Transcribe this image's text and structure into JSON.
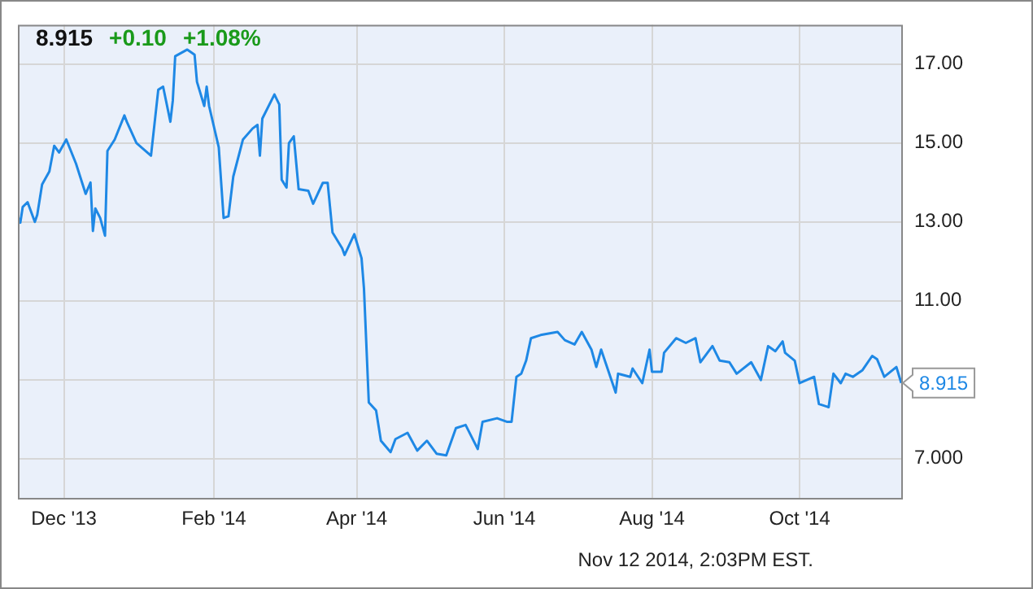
{
  "chart_data": {
    "type": "line",
    "x": [
      "2013-11-12",
      "2013-11-13",
      "2013-11-14",
      "2013-11-16",
      "2013-11-19",
      "2013-11-20",
      "2013-11-22",
      "2013-11-25",
      "2013-11-27",
      "2013-11-29",
      "2013-12-02",
      "2013-12-06",
      "2013-12-10",
      "2013-12-12",
      "2013-12-13",
      "2013-12-14",
      "2013-12-16",
      "2013-12-18",
      "2013-12-19",
      "2013-12-22",
      "2013-12-26",
      "2013-12-27",
      "2013-12-31",
      "2014-01-06",
      "2014-01-09",
      "2014-01-11",
      "2014-01-14",
      "2014-01-15",
      "2014-01-16",
      "2014-01-21",
      "2014-01-24",
      "2014-01-25",
      "2014-01-28",
      "2014-01-29",
      "2014-01-30",
      "2014-02-03",
      "2014-02-05",
      "2014-02-07",
      "2014-02-09",
      "2014-02-13",
      "2014-02-17",
      "2014-02-19",
      "2014-02-20",
      "2014-02-21",
      "2014-02-26",
      "2014-02-28",
      "2014-03-01",
      "2014-03-03",
      "2014-03-04",
      "2014-03-06",
      "2014-03-08",
      "2014-03-12",
      "2014-03-14",
      "2014-03-18",
      "2014-03-20",
      "2014-03-22",
      "2014-03-26",
      "2014-03-27",
      "2014-03-31",
      "2014-04-03",
      "2014-04-04",
      "2014-04-06",
      "2014-04-09",
      "2014-04-11",
      "2014-04-15",
      "2014-04-17",
      "2014-04-22",
      "2014-04-26",
      "2014-04-30",
      "2014-05-04",
      "2014-05-08",
      "2014-05-12",
      "2014-05-16",
      "2014-05-21",
      "2014-05-23",
      "2014-05-29",
      "2014-06-02",
      "2014-06-04",
      "2014-06-06",
      "2014-06-08",
      "2014-06-10",
      "2014-06-12",
      "2014-06-16",
      "2014-06-23",
      "2014-06-26",
      "2014-06-30",
      "2014-07-03",
      "2014-07-07",
      "2014-07-09",
      "2014-07-11",
      "2014-07-17",
      "2014-07-18",
      "2014-07-23",
      "2014-07-24",
      "2014-07-28",
      "2014-07-31",
      "2014-08-01",
      "2014-08-05",
      "2014-08-06",
      "2014-08-11",
      "2014-08-15",
      "2014-08-19",
      "2014-08-21",
      "2014-08-26",
      "2014-08-29",
      "2014-09-02",
      "2014-09-05",
      "2014-09-11",
      "2014-09-15",
      "2014-09-18",
      "2014-09-21",
      "2014-09-24",
      "2014-09-25",
      "2014-09-29",
      "2014-10-01",
      "2014-10-07",
      "2014-10-09",
      "2014-10-13",
      "2014-10-15",
      "2014-10-18",
      "2014-10-20",
      "2014-10-23",
      "2014-10-27",
      "2014-10-31",
      "2014-11-02",
      "2014-11-05",
      "2014-11-10",
      "2014-11-12"
    ],
    "series": [
      {
        "color": "#1e88e5",
        "values": [
          13.14,
          12.98,
          13.38,
          13.5,
          13.0,
          13.18,
          13.95,
          14.28,
          14.93,
          14.76,
          15.09,
          14.48,
          13.71,
          14.0,
          12.77,
          13.34,
          13.1,
          12.65,
          14.8,
          15.09,
          15.7,
          15.54,
          15.0,
          14.68,
          16.35,
          16.43,
          15.54,
          16.07,
          17.2,
          17.37,
          17.24,
          16.55,
          15.94,
          16.43,
          15.94,
          14.89,
          13.1,
          13.14,
          14.15,
          15.09,
          15.37,
          15.46,
          14.68,
          15.62,
          16.23,
          15.98,
          14.07,
          13.87,
          15.0,
          15.17,
          13.83,
          13.79,
          13.46,
          13.99,
          13.99,
          12.73,
          12.33,
          12.16,
          12.69,
          12.08,
          11.31,
          8.42,
          8.22,
          7.45,
          7.16,
          7.49,
          7.65,
          7.2,
          7.45,
          7.12,
          7.08,
          7.77,
          7.85,
          7.24,
          7.93,
          8.02,
          7.93,
          7.93,
          9.07,
          9.15,
          9.48,
          10.05,
          10.13,
          10.21,
          10.0,
          9.89,
          10.21,
          9.76,
          9.32,
          9.76,
          8.67,
          9.15,
          9.07,
          9.28,
          8.91,
          9.76,
          9.2,
          9.2,
          9.68,
          10.05,
          9.93,
          10.05,
          9.44,
          9.85,
          9.48,
          9.44,
          9.15,
          9.44,
          8.99,
          9.85,
          9.72,
          9.97,
          9.68,
          9.48,
          8.91,
          9.07,
          8.38,
          8.3,
          9.15,
          8.91,
          9.15,
          9.07,
          9.24,
          9.6,
          9.52,
          9.07,
          9.32,
          8.915
        ]
      }
    ],
    "xlim": [
      "2013-11-12",
      "2014-11-12"
    ],
    "xticks": [
      {
        "value": "2013-12-01",
        "label": "Dec '13"
      },
      {
        "value": "2014-02-01",
        "label": "Feb '14"
      },
      {
        "value": "2014-04-01",
        "label": "Apr '14"
      },
      {
        "value": "2014-06-01",
        "label": "Jun '14"
      },
      {
        "value": "2014-08-01",
        "label": "Aug '14"
      },
      {
        "value": "2014-10-01",
        "label": "Oct '14"
      }
    ],
    "ylim": [
      6,
      18
    ],
    "yticks": [
      {
        "value": 7,
        "label": "7.000"
      },
      {
        "value": 9,
        "label": null
      },
      {
        "value": 11,
        "label": "11.00"
      },
      {
        "value": 13,
        "label": "13.00"
      },
      {
        "value": 15,
        "label": "15.00"
      },
      {
        "value": 17,
        "label": "17.00"
      }
    ],
    "grid": true,
    "annotations": [
      "8.915",
      "+0.10",
      "+1.08%",
      "Nov 12 2014, 2:03PM EST.",
      {
        "text": "8.915",
        "x": "2014-11-12",
        "y": 8.915
      }
    ]
  }
}
